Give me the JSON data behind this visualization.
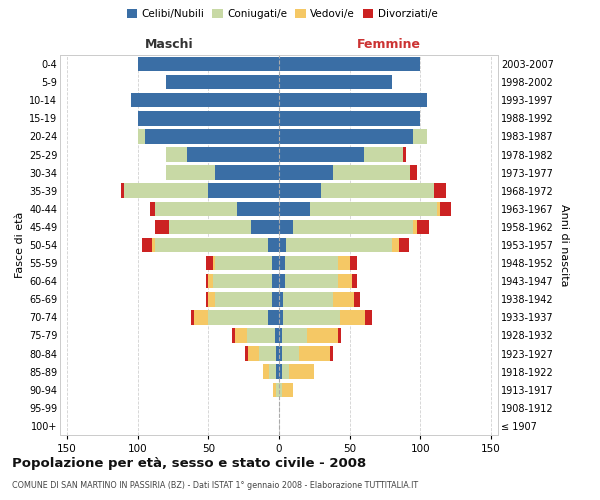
{
  "age_groups": [
    "100+",
    "95-99",
    "90-94",
    "85-89",
    "80-84",
    "75-79",
    "70-74",
    "65-69",
    "60-64",
    "55-59",
    "50-54",
    "45-49",
    "40-44",
    "35-39",
    "30-34",
    "25-29",
    "20-24",
    "15-19",
    "10-14",
    "5-9",
    "0-4"
  ],
  "birth_years": [
    "≤ 1907",
    "1908-1912",
    "1913-1917",
    "1918-1922",
    "1923-1927",
    "1928-1932",
    "1933-1937",
    "1938-1942",
    "1943-1947",
    "1948-1952",
    "1953-1957",
    "1958-1962",
    "1963-1967",
    "1968-1972",
    "1973-1977",
    "1978-1982",
    "1983-1987",
    "1988-1992",
    "1993-1997",
    "1998-2002",
    "2003-2007"
  ],
  "males": {
    "celibi": [
      0,
      0,
      0,
      2,
      2,
      3,
      8,
      5,
      5,
      5,
      8,
      20,
      30,
      50,
      45,
      65,
      95,
      100,
      105,
      80,
      100
    ],
    "coniugati": [
      0,
      0,
      2,
      5,
      12,
      20,
      42,
      40,
      42,
      40,
      80,
      58,
      58,
      60,
      35,
      15,
      5,
      0,
      0,
      0,
      0
    ],
    "vedovi": [
      0,
      0,
      2,
      4,
      8,
      8,
      10,
      5,
      3,
      2,
      2,
      0,
      0,
      0,
      0,
      0,
      0,
      0,
      0,
      0,
      0
    ],
    "divorziati": [
      0,
      0,
      0,
      0,
      2,
      2,
      2,
      2,
      2,
      5,
      7,
      10,
      3,
      2,
      0,
      0,
      0,
      0,
      0,
      0,
      0
    ]
  },
  "females": {
    "nubili": [
      0,
      0,
      0,
      2,
      2,
      2,
      3,
      3,
      4,
      4,
      5,
      10,
      22,
      30,
      38,
      60,
      95,
      100,
      105,
      80,
      100
    ],
    "coniugate": [
      0,
      0,
      2,
      5,
      12,
      18,
      40,
      35,
      38,
      38,
      75,
      85,
      90,
      80,
      55,
      28,
      10,
      0,
      0,
      0,
      0
    ],
    "vedove": [
      0,
      0,
      8,
      18,
      22,
      22,
      18,
      15,
      10,
      8,
      5,
      3,
      2,
      0,
      0,
      0,
      0,
      0,
      0,
      0,
      0
    ],
    "divorziate": [
      0,
      0,
      0,
      0,
      2,
      2,
      5,
      4,
      3,
      5,
      7,
      8,
      8,
      8,
      5,
      2,
      0,
      0,
      0,
      0,
      0
    ]
  },
  "colors": {
    "celibi": "#3a6ea5",
    "coniugati": "#c8d9a5",
    "vedovi": "#f5c865",
    "divorziati": "#cc2222"
  },
  "xlim": 155,
  "title": "Popolazione per età, sesso e stato civile - 2008",
  "subtitle": "COMUNE DI SAN MARTINO IN PASSIRIA (BZ) - Dati ISTAT 1° gennaio 2008 - Elaborazione TUTTITALIA.IT",
  "ylabel_left": "Fasce di età",
  "ylabel_right": "Anni di nascita",
  "xlabel_left": "Maschi",
  "xlabel_right": "Femmine",
  "legend_labels": [
    "Celibi/Nubili",
    "Coniugati/e",
    "Vedovi/e",
    "Divorziati/e"
  ],
  "bg_color": "#ffffff",
  "grid_color": "#cccccc"
}
